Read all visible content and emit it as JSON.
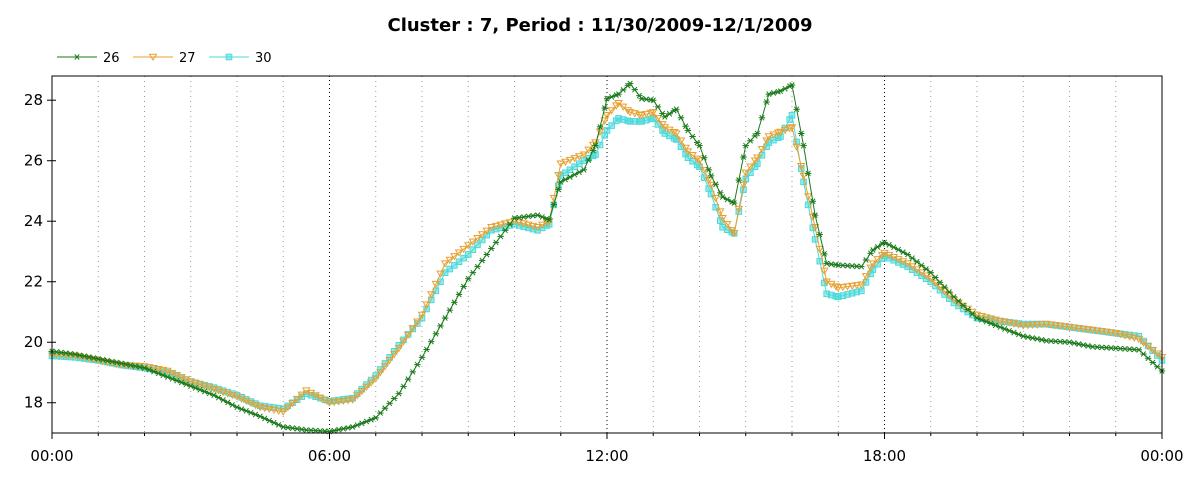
{
  "chart_data": {
    "type": "line",
    "title": "Cluster : 7, Period : 11/30/2009-12/1/2009",
    "xlabel": "",
    "ylabel": "",
    "x_ticks": [
      "00:00",
      "06:00",
      "12:00",
      "18:00",
      "00:00"
    ],
    "x_tick_hours": [
      0,
      6,
      12,
      18,
      24
    ],
    "xlim_hours": [
      0,
      24
    ],
    "y_ticks": [
      18,
      20,
      22,
      24,
      26,
      28
    ],
    "ylim": [
      17,
      28.8
    ],
    "grid": "dotted-vertical",
    "legend_position": "top-left",
    "series": [
      {
        "name": "26",
        "color": "#1a7a1a",
        "marker": "asterisk",
        "x": [
          0,
          0.5,
          1,
          1.5,
          2,
          2.5,
          3,
          3.5,
          4,
          4.5,
          5,
          5.5,
          6,
          6.5,
          7,
          7.5,
          8,
          8.5,
          9,
          9.5,
          10,
          10.5,
          10.75,
          11,
          11.5,
          11.75,
          12,
          12.25,
          12.5,
          12.75,
          13,
          13.25,
          13.5,
          13.75,
          14,
          14.25,
          14.5,
          14.75,
          15,
          15.25,
          15.5,
          15.75,
          16,
          16.25,
          16.5,
          16.75,
          17,
          17.5,
          17.75,
          18,
          18.5,
          19,
          19.5,
          20,
          20.5,
          21,
          21.5,
          22,
          22.5,
          23,
          23.5,
          24
        ],
        "y": [
          19.7,
          19.6,
          19.45,
          19.3,
          19.15,
          18.85,
          18.55,
          18.25,
          17.85,
          17.55,
          17.2,
          17.1,
          17.05,
          17.2,
          17.5,
          18.3,
          19.5,
          20.8,
          22.1,
          23.1,
          24.1,
          24.2,
          24.05,
          25.3,
          25.7,
          26.5,
          28.05,
          28.2,
          28.55,
          28.05,
          28.0,
          27.45,
          27.7,
          27.0,
          26.5,
          25.5,
          24.8,
          24.6,
          26.5,
          26.9,
          28.2,
          28.3,
          28.5,
          26.5,
          24.2,
          22.6,
          22.55,
          22.5,
          23.05,
          23.3,
          22.9,
          22.3,
          21.5,
          20.8,
          20.5,
          20.2,
          20.05,
          20.0,
          19.85,
          19.8,
          19.75,
          19.05
        ]
      },
      {
        "name": "27",
        "color": "#e8a030",
        "marker": "triangle-down",
        "x": [
          0,
          0.5,
          1,
          1.5,
          2,
          2.5,
          3,
          3.5,
          4,
          4.5,
          5,
          5.5,
          6,
          6.5,
          7,
          7.5,
          8,
          8.5,
          9,
          9.5,
          10,
          10.5,
          10.75,
          11,
          11.5,
          11.75,
          12,
          12.25,
          12.5,
          12.75,
          13,
          13.25,
          13.5,
          13.75,
          14,
          14.25,
          14.5,
          14.75,
          15,
          15.25,
          15.5,
          15.75,
          16,
          16.25,
          16.5,
          16.75,
          17,
          17.5,
          17.75,
          18,
          18.5,
          19,
          19.5,
          20,
          20.5,
          21,
          21.5,
          22,
          22.5,
          23,
          23.5,
          24
        ],
        "y": [
          19.6,
          19.55,
          19.4,
          19.25,
          19.2,
          19.05,
          18.7,
          18.45,
          18.2,
          17.85,
          17.7,
          18.4,
          18.0,
          18.1,
          18.8,
          19.8,
          20.9,
          22.6,
          23.2,
          23.8,
          24.0,
          23.8,
          24.0,
          25.9,
          26.2,
          26.6,
          27.5,
          27.9,
          27.6,
          27.5,
          27.6,
          27.1,
          26.9,
          26.3,
          26.0,
          25.2,
          24.1,
          23.6,
          25.6,
          26.1,
          26.8,
          26.95,
          27.1,
          25.5,
          23.8,
          22.0,
          21.8,
          21.9,
          22.6,
          22.95,
          22.6,
          22.1,
          21.4,
          20.9,
          20.7,
          20.55,
          20.6,
          20.5,
          20.4,
          20.3,
          20.1,
          19.5
        ]
      },
      {
        "name": "30",
        "color": "#4dd9d9",
        "marker": "square",
        "x": [
          0,
          0.5,
          1,
          1.5,
          2,
          2.5,
          3,
          3.5,
          4,
          4.5,
          5,
          5.5,
          6,
          6.5,
          7,
          7.5,
          8,
          8.5,
          9,
          9.5,
          10,
          10.5,
          10.75,
          11,
          11.5,
          11.75,
          12,
          12.25,
          12.5,
          12.75,
          13,
          13.25,
          13.5,
          13.75,
          14,
          14.25,
          14.5,
          14.75,
          15,
          15.25,
          15.5,
          15.75,
          16,
          16.25,
          16.5,
          16.75,
          17,
          17.5,
          17.75,
          18,
          18.5,
          19,
          19.5,
          20,
          20.5,
          21,
          21.5,
          22,
          22.5,
          23,
          23.5,
          24
        ],
        "y": [
          19.55,
          19.5,
          19.4,
          19.25,
          19.15,
          19.0,
          18.7,
          18.5,
          18.25,
          17.9,
          17.8,
          18.3,
          18.05,
          18.15,
          18.9,
          19.9,
          20.8,
          22.3,
          22.9,
          23.7,
          23.9,
          23.7,
          23.9,
          25.5,
          26.0,
          26.2,
          27.0,
          27.4,
          27.3,
          27.3,
          27.4,
          26.9,
          26.7,
          26.1,
          25.8,
          24.9,
          23.8,
          23.6,
          25.4,
          25.9,
          26.6,
          26.8,
          27.5,
          25.3,
          23.4,
          21.6,
          21.5,
          21.7,
          22.4,
          22.85,
          22.5,
          22.0,
          21.3,
          20.8,
          20.7,
          20.6,
          20.6,
          20.5,
          20.4,
          20.3,
          20.2,
          19.4
        ]
      }
    ]
  }
}
